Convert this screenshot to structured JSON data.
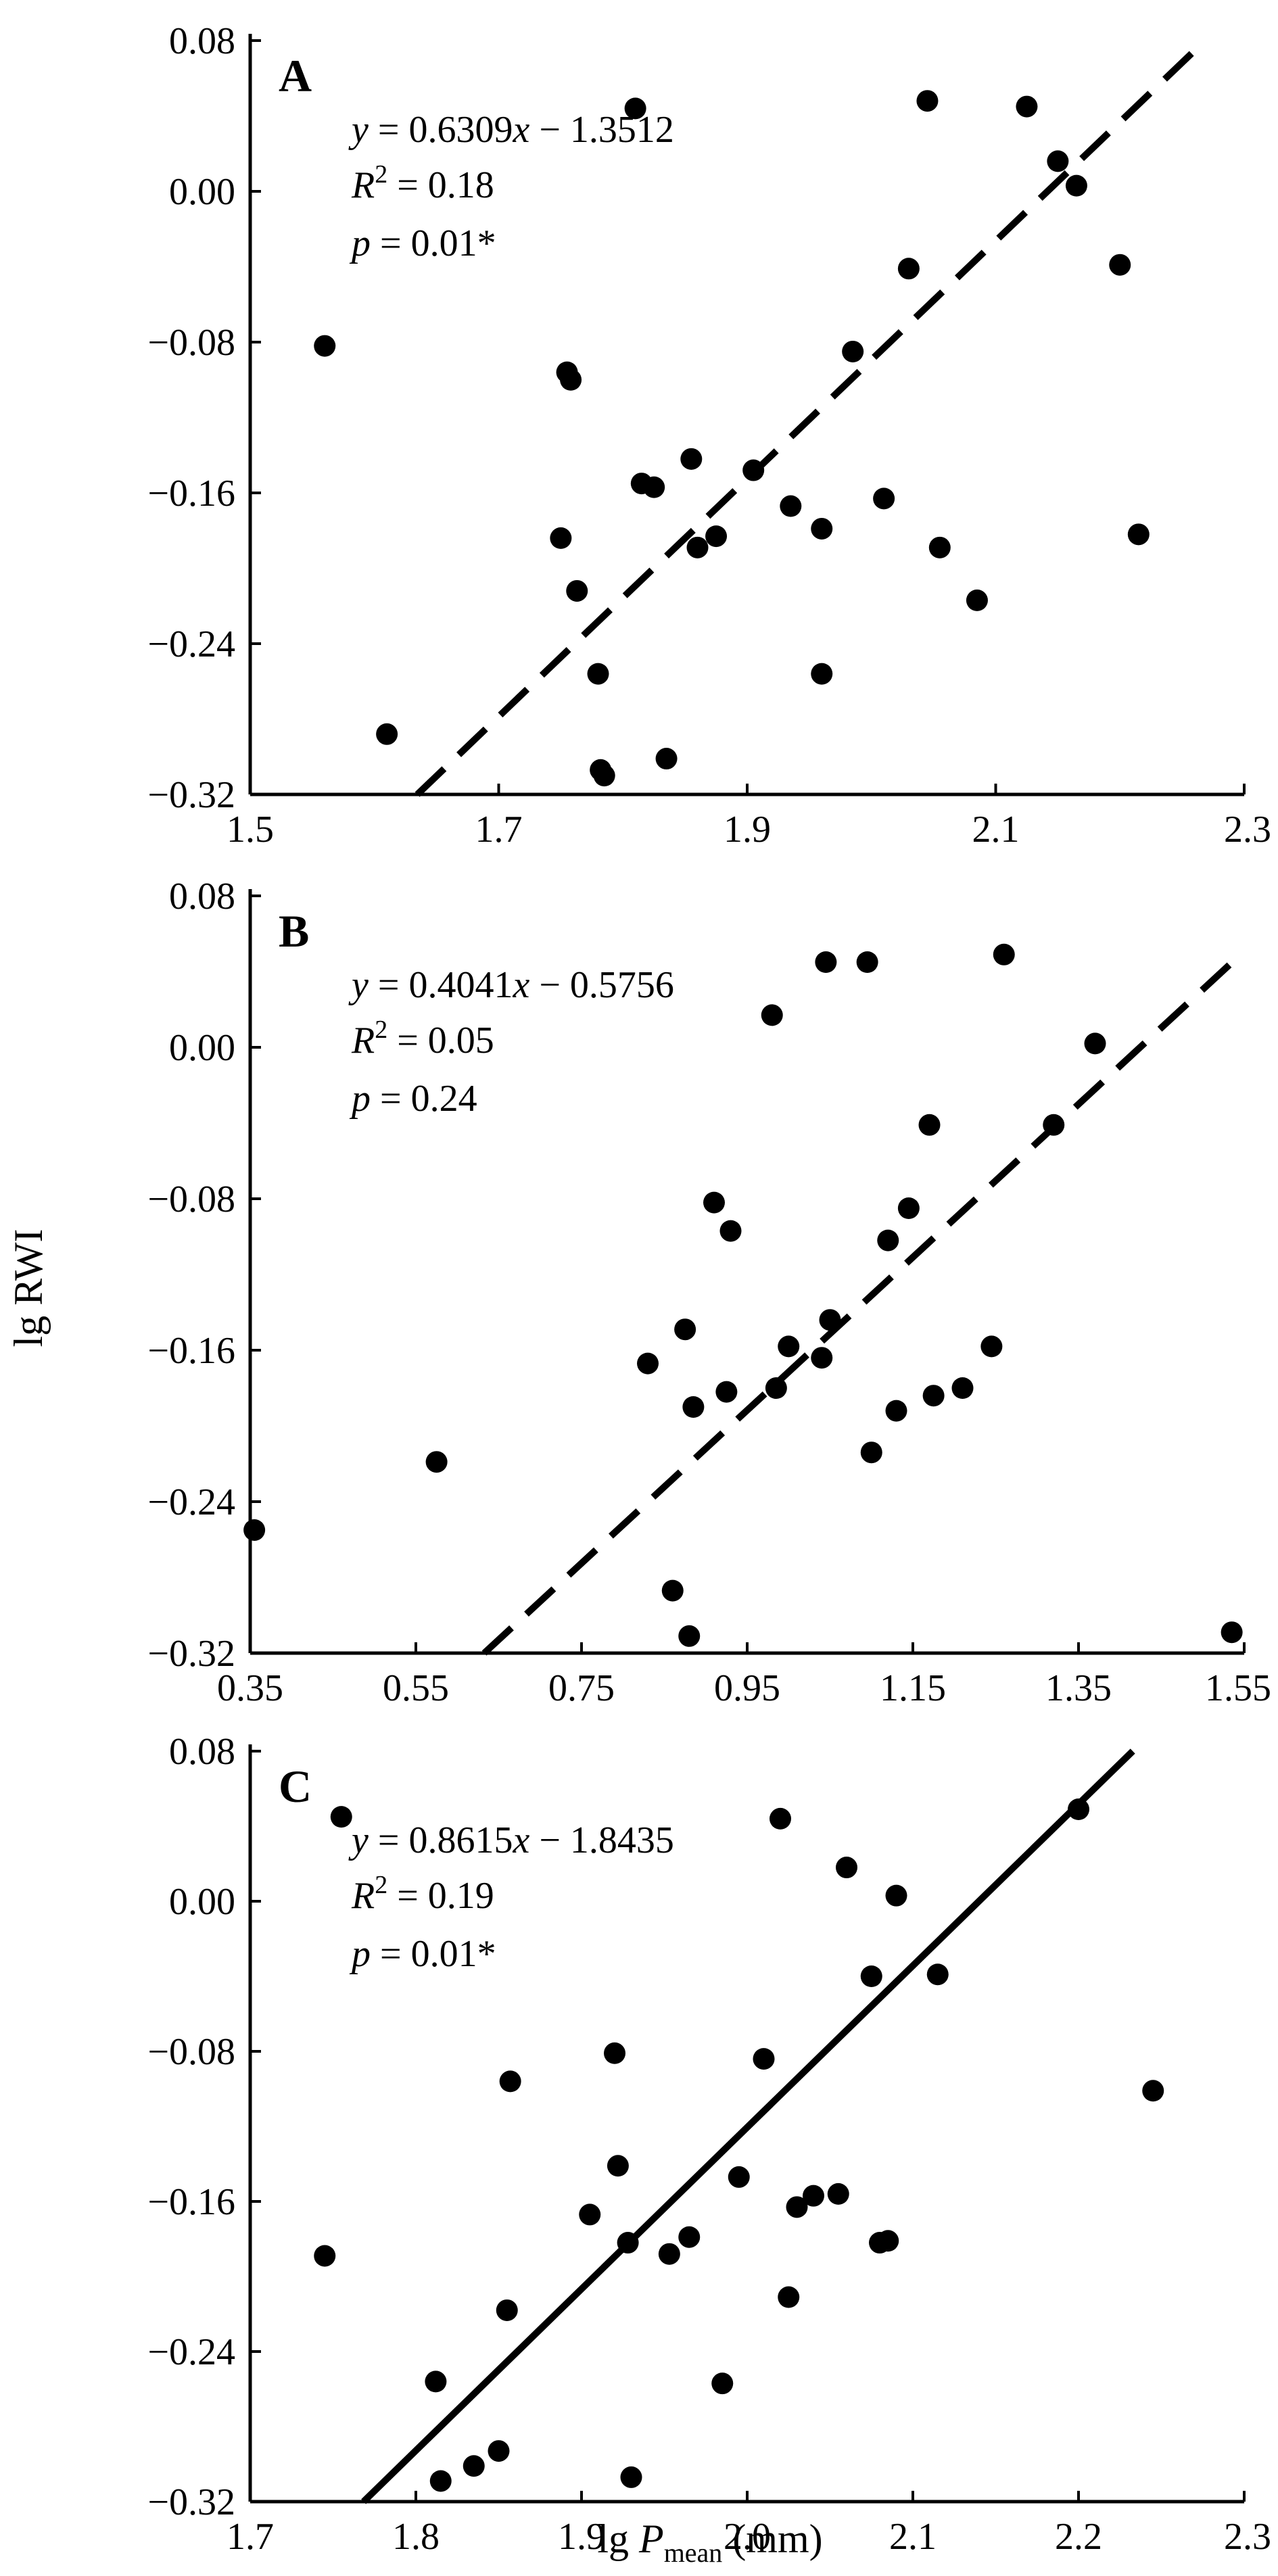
{
  "figure": {
    "ylabel": "lg RWI",
    "xlabel": {
      "main": "lg P",
      "sub": "mean",
      "unit": "(mm)"
    }
  },
  "chart_data": [
    {
      "type": "scatter",
      "panel": "A",
      "equation": {
        "lhs": "y",
        "eq": " = 0.6309",
        "var": "x",
        "rest": " − 1.3512"
      },
      "r2": {
        "sym": "R",
        "sup": "2",
        "rest": " = 0.18"
      },
      "p": {
        "sym": "p",
        "rest": " = 0.01*"
      },
      "fit": {
        "slope": 0.6309,
        "intercept": -1.3512,
        "style": "dashed"
      },
      "xlim": [
        1.5,
        2.3
      ],
      "ylim": [
        -0.32,
        0.08
      ],
      "xticks": [
        1.5,
        1.7,
        1.9,
        2.1,
        2.3
      ],
      "xticklabels": [
        "1.5",
        "1.7",
        "1.9",
        "2.1",
        "2.3"
      ],
      "yticks": [
        -0.32,
        -0.24,
        -0.16,
        -0.08,
        0.0,
        0.08
      ],
      "yticklabels": [
        "−0.32",
        "−0.24",
        "−0.16",
        "−0.08",
        "0.00",
        "0.08"
      ],
      "points": [
        [
          1.56,
          -0.082
        ],
        [
          1.61,
          -0.288
        ],
        [
          1.75,
          -0.184
        ],
        [
          1.755,
          -0.096
        ],
        [
          1.758,
          -0.1
        ],
        [
          1.763,
          -0.212
        ],
        [
          1.78,
          -0.256
        ],
        [
          1.782,
          -0.307
        ],
        [
          1.785,
          -0.31
        ],
        [
          1.81,
          0.044
        ],
        [
          1.815,
          -0.155
        ],
        [
          1.825,
          -0.157
        ],
        [
          1.835,
          -0.301
        ],
        [
          1.855,
          -0.142
        ],
        [
          1.86,
          -0.189
        ],
        [
          1.875,
          -0.183
        ],
        [
          1.905,
          -0.148
        ],
        [
          1.935,
          -0.167
        ],
        [
          1.96,
          -0.256
        ],
        [
          1.96,
          -0.179
        ],
        [
          1.985,
          -0.085
        ],
        [
          2.01,
          -0.163
        ],
        [
          2.03,
          -0.041
        ],
        [
          2.045,
          0.048
        ],
        [
          2.055,
          -0.189
        ],
        [
          2.085,
          -0.217
        ],
        [
          2.125,
          0.045
        ],
        [
          2.15,
          0.016
        ],
        [
          2.165,
          0.003
        ],
        [
          2.2,
          -0.039
        ],
        [
          2.215,
          -0.182
        ]
      ]
    },
    {
      "type": "scatter",
      "panel": "B",
      "equation": {
        "lhs": "y",
        "eq": " = 0.4041",
        "var": "x",
        "rest": " − 0.5756"
      },
      "r2": {
        "sym": "R",
        "sup": "2",
        "rest": " = 0.05"
      },
      "p": {
        "sym": "p",
        "rest": " = 0.24"
      },
      "fit": {
        "slope": 0.4041,
        "intercept": -0.5756,
        "style": "dashed"
      },
      "xlim": [
        0.35,
        1.55
      ],
      "ylim": [
        -0.32,
        0.08
      ],
      "xticks": [
        0.35,
        0.55,
        0.75,
        0.95,
        1.15,
        1.35,
        1.55
      ],
      "xticklabels": [
        "0.35",
        "0.55",
        "0.75",
        "0.95",
        "1.15",
        "1.35",
        "1.55"
      ],
      "yticks": [
        -0.32,
        -0.24,
        -0.16,
        -0.08,
        0.0,
        0.08
      ],
      "yticklabels": [
        "−0.32",
        "−0.24",
        "−0.16",
        "−0.08",
        "0.00",
        "0.08"
      ],
      "points": [
        [
          0.355,
          -0.255
        ],
        [
          0.575,
          -0.219
        ],
        [
          0.83,
          -0.167
        ],
        [
          0.86,
          -0.287
        ],
        [
          0.875,
          -0.149
        ],
        [
          0.88,
          -0.311
        ],
        [
          0.885,
          -0.19
        ],
        [
          0.91,
          -0.082
        ],
        [
          0.925,
          -0.182
        ],
        [
          0.93,
          -0.097
        ],
        [
          0.98,
          0.017
        ],
        [
          0.985,
          -0.18
        ],
        [
          1.0,
          -0.158
        ],
        [
          1.04,
          -0.164
        ],
        [
          1.045,
          0.045
        ],
        [
          1.05,
          -0.144
        ],
        [
          1.095,
          0.045
        ],
        [
          1.1,
          -0.214
        ],
        [
          1.12,
          -0.102
        ],
        [
          1.13,
          -0.192
        ],
        [
          1.145,
          -0.085
        ],
        [
          1.17,
          -0.041
        ],
        [
          1.175,
          -0.184
        ],
        [
          1.21,
          -0.18
        ],
        [
          1.245,
          -0.158
        ],
        [
          1.26,
          0.049
        ],
        [
          1.32,
          -0.041
        ],
        [
          1.37,
          0.002
        ],
        [
          1.535,
          -0.309
        ]
      ]
    },
    {
      "type": "scatter",
      "panel": "C",
      "equation": {
        "lhs": "y",
        "eq": " = 0.8615",
        "var": "x",
        "rest": " − 1.8435"
      },
      "r2": {
        "sym": "R",
        "sup": "2",
        "rest": " = 0.19"
      },
      "p": {
        "sym": "p",
        "rest": " = 0.01*"
      },
      "fit": {
        "slope": 0.8615,
        "intercept": -1.8435,
        "style": "solid"
      },
      "xlim": [
        1.7,
        2.3
      ],
      "ylim": [
        -0.32,
        0.08
      ],
      "xticks": [
        1.7,
        1.8,
        1.9,
        2.0,
        2.1,
        2.2,
        2.3
      ],
      "xticklabels": [
        "1.7",
        "1.8",
        "1.9",
        "2.0",
        "2.1",
        "2.2",
        "2.3"
      ],
      "yticks": [
        -0.32,
        -0.24,
        -0.16,
        -0.08,
        0.0,
        0.08
      ],
      "yticklabels": [
        "−0.32",
        "−0.24",
        "−0.16",
        "−0.08",
        "0.00",
        "0.08"
      ],
      "points": [
        [
          1.745,
          -0.189
        ],
        [
          1.755,
          0.045
        ],
        [
          1.812,
          -0.256
        ],
        [
          1.815,
          -0.309
        ],
        [
          1.835,
          -0.301
        ],
        [
          1.85,
          -0.293
        ],
        [
          1.855,
          -0.218
        ],
        [
          1.857,
          -0.096
        ],
        [
          1.905,
          -0.167
        ],
        [
          1.92,
          -0.081
        ],
        [
          1.922,
          -0.141
        ],
        [
          1.928,
          -0.182
        ],
        [
          1.93,
          -0.307
        ],
        [
          1.953,
          -0.188
        ],
        [
          1.965,
          -0.179
        ],
        [
          1.985,
          -0.257
        ],
        [
          1.995,
          -0.147
        ],
        [
          2.01,
          -0.084
        ],
        [
          2.02,
          0.044
        ],
        [
          2.025,
          -0.211
        ],
        [
          2.03,
          -0.163
        ],
        [
          2.04,
          -0.157
        ],
        [
          2.055,
          -0.156
        ],
        [
          2.06,
          0.018
        ],
        [
          2.075,
          -0.04
        ],
        [
          2.08,
          -0.182
        ],
        [
          2.085,
          -0.181
        ],
        [
          2.09,
          0.003
        ],
        [
          2.115,
          -0.039
        ],
        [
          2.2,
          0.049
        ],
        [
          2.245,
          -0.101
        ]
      ]
    }
  ]
}
